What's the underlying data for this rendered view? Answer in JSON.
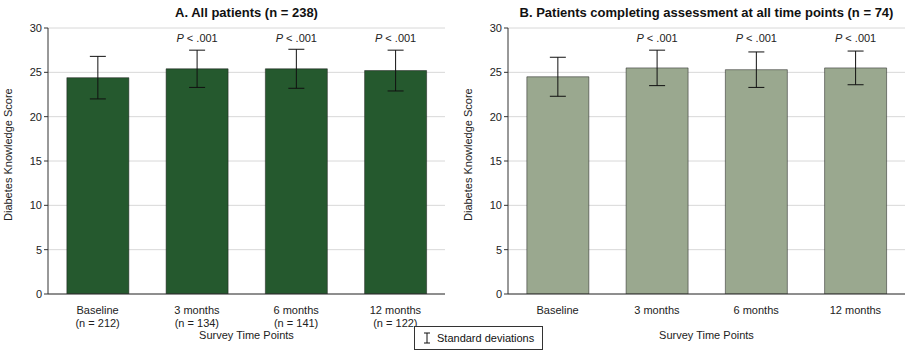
{
  "chart_data": [
    {
      "type": "bar",
      "title": "A. All patients (n = 238)",
      "x_label": "Survey Time Points",
      "y_label": "Diabetes Knowledge Score",
      "categories": [
        "Baseline\n(n = 212)",
        "3 months\n(n = 134)",
        "6 months\n(n = 141)",
        "12 months\n(n = 122)"
      ],
      "values": [
        24.4,
        25.4,
        25.4,
        25.2
      ],
      "errors": [
        2.4,
        2.1,
        2.2,
        2.3
      ],
      "annotations": [
        null,
        "P < .001",
        "P < .001",
        "P < .001"
      ],
      "color": "#25592e",
      "ylim": [
        0,
        30
      ],
      "yticks": [
        0,
        5,
        10,
        15,
        20,
        25,
        30
      ],
      "grid": true
    },
    {
      "type": "bar",
      "title": "B. Patients completing assessment at all time points (n = 74)",
      "x_label": "Survey Time Points",
      "y_label": "Diabetes Knowledge Score",
      "categories": [
        "Baseline",
        "3 months",
        "6 months",
        "12 months"
      ],
      "values": [
        24.5,
        25.5,
        25.3,
        25.5
      ],
      "errors": [
        2.2,
        2.0,
        2.0,
        1.9
      ],
      "annotations": [
        null,
        "P < .001",
        "P < .001",
        "P < .001"
      ],
      "color": "#9aa88f",
      "ylim": [
        0,
        30
      ],
      "yticks": [
        0,
        5,
        10,
        15,
        20,
        25,
        30
      ],
      "grid": true
    }
  ],
  "error_bar_legend": "Standard deviations"
}
